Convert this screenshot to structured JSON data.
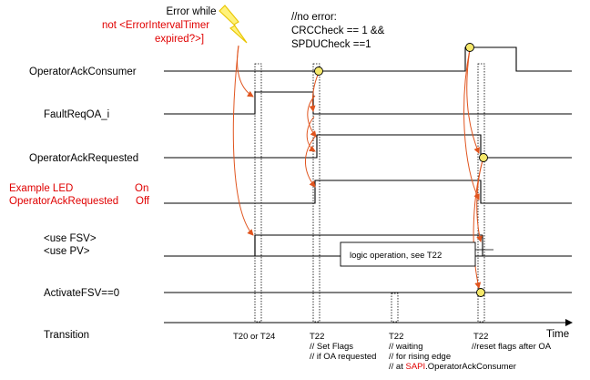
{
  "annotations": {
    "error_line1": "Error while",
    "error_line2": "not <ErrorIntervalTimer",
    "error_line3": "expired?>]",
    "no_error_line1": "//no  error:",
    "no_error_line2": "CRCCheck == 1 &&",
    "no_error_line3": "SPDUCheck ==1",
    "logic_box": "logic operation,  see T22"
  },
  "signals": {
    "operator_ack_consumer": "OperatorAckConsumer",
    "fault_req_oa": "FaultReqOA_i",
    "operator_ack_requested": "OperatorAckRequested",
    "example_led_line1": "Example LED",
    "example_led_on": "On",
    "example_led_line2": "OperatorAckRequested",
    "example_led_off": "Off",
    "use_fsv": "<use FSV>",
    "use_pv": "<use PV>",
    "activate_fsv": "ActivateFSV==0",
    "transition": "Transition"
  },
  "axis": {
    "time_label": "Time",
    "ticks": [
      {
        "label": "T20 or T24",
        "notes": []
      },
      {
        "label": "T22",
        "notes": [
          "// Set Flags",
          "// if OA requested"
        ]
      },
      {
        "label": "T22",
        "notes": [
          "// waiting",
          "// for rising edge",
          "// at "
        ],
        "note_highlight": "SAPI",
        "note_tail": ".OperatorAckConsumer"
      },
      {
        "label": "T22",
        "notes": [
          "//reset flags after OA"
        ]
      }
    ]
  },
  "colors": {
    "signal_line": "#000000",
    "causal_arrow": "#e0541e",
    "event_marker_fill": "#f5e86a",
    "error_text": "#e00000",
    "lightning_fill": "#fff27a",
    "lightning_stroke": "#e8c400"
  }
}
